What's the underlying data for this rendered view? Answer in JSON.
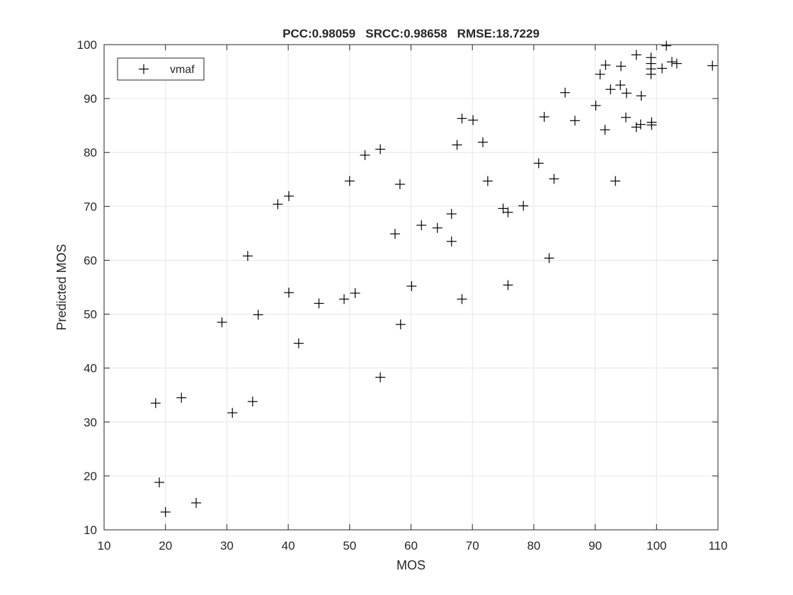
{
  "chart_data": {
    "type": "scatter",
    "title": "PCC:0.98059   SRCC:0.98658   RMSE:18.7229",
    "xlabel": "MOS",
    "ylabel": "Predicted MOS",
    "xlim": [
      10,
      110
    ],
    "ylim": [
      10,
      100
    ],
    "xticks": [
      "10",
      "20",
      "30",
      "40",
      "50",
      "60",
      "70",
      "80",
      "90",
      "100",
      "110"
    ],
    "yticks": [
      "10",
      "20",
      "30",
      "40",
      "50",
      "60",
      "70",
      "80",
      "90",
      "100"
    ],
    "grid": true,
    "legend_position": "top-left",
    "marker": "+",
    "marker_color": "#000000",
    "grid_color": "#e6e6e6",
    "series": [
      {
        "name": "vmaf",
        "points": [
          [
            18.4,
            33.5
          ],
          [
            19.0,
            18.8
          ],
          [
            20.0,
            13.3
          ],
          [
            22.6,
            34.5
          ],
          [
            25.0,
            15.0
          ],
          [
            29.2,
            48.5
          ],
          [
            30.9,
            31.7
          ],
          [
            33.4,
            60.8
          ],
          [
            34.2,
            33.8
          ],
          [
            35.1,
            49.9
          ],
          [
            38.3,
            70.4
          ],
          [
            40.1,
            71.9
          ],
          [
            40.1,
            54.0
          ],
          [
            41.7,
            44.6
          ],
          [
            45.0,
            52.0
          ],
          [
            49.1,
            52.8
          ],
          [
            50.0,
            74.7
          ],
          [
            50.9,
            53.9
          ],
          [
            52.5,
            79.5
          ],
          [
            55.0,
            80.6
          ],
          [
            55.0,
            38.3
          ],
          [
            57.4,
            64.9
          ],
          [
            58.2,
            74.1
          ],
          [
            58.3,
            48.1
          ],
          [
            60.1,
            55.2
          ],
          [
            61.7,
            66.5
          ],
          [
            64.3,
            66.0
          ],
          [
            66.6,
            68.6
          ],
          [
            66.6,
            63.5
          ],
          [
            67.5,
            81.4
          ],
          [
            68.3,
            86.3
          ],
          [
            68.3,
            52.8
          ],
          [
            70.1,
            86.0
          ],
          [
            71.7,
            81.9
          ],
          [
            72.5,
            74.7
          ],
          [
            75.0,
            69.6
          ],
          [
            75.8,
            68.9
          ],
          [
            75.8,
            55.4
          ],
          [
            78.3,
            70.1
          ],
          [
            80.8,
            78.0
          ],
          [
            81.7,
            86.6
          ],
          [
            82.5,
            60.4
          ],
          [
            83.3,
            75.1
          ],
          [
            85.1,
            91.1
          ],
          [
            86.7,
            85.9
          ],
          [
            90.1,
            88.7
          ],
          [
            90.8,
            94.5
          ],
          [
            91.6,
            84.2
          ],
          [
            91.7,
            96.2
          ],
          [
            92.5,
            91.7
          ],
          [
            93.3,
            74.7
          ],
          [
            94.1,
            92.5
          ],
          [
            94.2,
            96.0
          ],
          [
            95.0,
            86.5
          ],
          [
            95.1,
            91.0
          ],
          [
            96.7,
            98.1
          ],
          [
            96.7,
            84.7
          ],
          [
            97.4,
            85.2
          ],
          [
            97.5,
            90.5
          ],
          [
            99.1,
            95.5
          ],
          [
            99.1,
            96.5
          ],
          [
            99.1,
            94.5
          ],
          [
            99.1,
            97.6
          ],
          [
            99.2,
            85.6
          ],
          [
            99.2,
            85.1
          ],
          [
            100.9,
            95.6
          ],
          [
            101.6,
            99.8
          ],
          [
            102.5,
            96.8
          ],
          [
            103.3,
            96.5
          ],
          [
            109.1,
            96.1
          ]
        ]
      }
    ]
  }
}
